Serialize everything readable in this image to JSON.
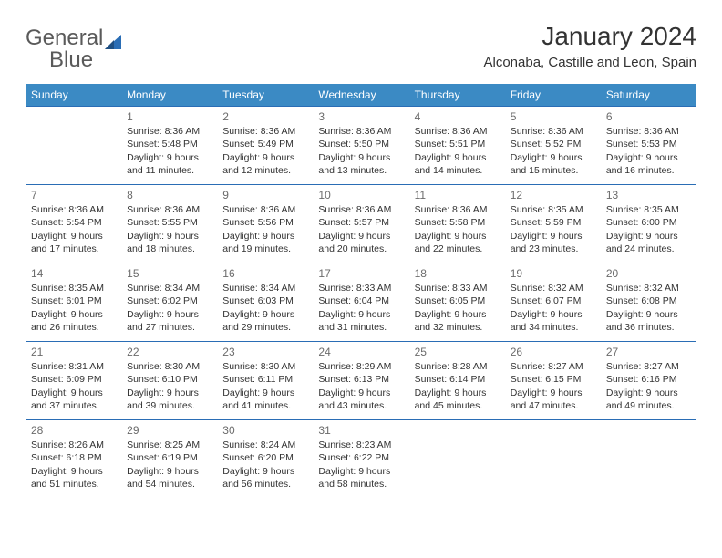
{
  "logo": {
    "word1": "General",
    "word2": "Blue"
  },
  "header": {
    "month_title": "January 2024",
    "location": "Alconaba, Castille and Leon, Spain"
  },
  "colors": {
    "header_bg": "#3b8ac4",
    "header_text": "#ffffff",
    "cell_border": "#2a6db5",
    "text": "#333333",
    "daynum": "#6b6b6b",
    "logo_gray": "#5a5a5a",
    "logo_blue": "#2a6db5"
  },
  "day_headers": [
    "Sunday",
    "Monday",
    "Tuesday",
    "Wednesday",
    "Thursday",
    "Friday",
    "Saturday"
  ],
  "weeks": [
    [
      null,
      {
        "n": "1",
        "sr": "Sunrise: 8:36 AM",
        "ss": "Sunset: 5:48 PM",
        "dl1": "Daylight: 9 hours",
        "dl2": "and 11 minutes."
      },
      {
        "n": "2",
        "sr": "Sunrise: 8:36 AM",
        "ss": "Sunset: 5:49 PM",
        "dl1": "Daylight: 9 hours",
        "dl2": "and 12 minutes."
      },
      {
        "n": "3",
        "sr": "Sunrise: 8:36 AM",
        "ss": "Sunset: 5:50 PM",
        "dl1": "Daylight: 9 hours",
        "dl2": "and 13 minutes."
      },
      {
        "n": "4",
        "sr": "Sunrise: 8:36 AM",
        "ss": "Sunset: 5:51 PM",
        "dl1": "Daylight: 9 hours",
        "dl2": "and 14 minutes."
      },
      {
        "n": "5",
        "sr": "Sunrise: 8:36 AM",
        "ss": "Sunset: 5:52 PM",
        "dl1": "Daylight: 9 hours",
        "dl2": "and 15 minutes."
      },
      {
        "n": "6",
        "sr": "Sunrise: 8:36 AM",
        "ss": "Sunset: 5:53 PM",
        "dl1": "Daylight: 9 hours",
        "dl2": "and 16 minutes."
      }
    ],
    [
      {
        "n": "7",
        "sr": "Sunrise: 8:36 AM",
        "ss": "Sunset: 5:54 PM",
        "dl1": "Daylight: 9 hours",
        "dl2": "and 17 minutes."
      },
      {
        "n": "8",
        "sr": "Sunrise: 8:36 AM",
        "ss": "Sunset: 5:55 PM",
        "dl1": "Daylight: 9 hours",
        "dl2": "and 18 minutes."
      },
      {
        "n": "9",
        "sr": "Sunrise: 8:36 AM",
        "ss": "Sunset: 5:56 PM",
        "dl1": "Daylight: 9 hours",
        "dl2": "and 19 minutes."
      },
      {
        "n": "10",
        "sr": "Sunrise: 8:36 AM",
        "ss": "Sunset: 5:57 PM",
        "dl1": "Daylight: 9 hours",
        "dl2": "and 20 minutes."
      },
      {
        "n": "11",
        "sr": "Sunrise: 8:36 AM",
        "ss": "Sunset: 5:58 PM",
        "dl1": "Daylight: 9 hours",
        "dl2": "and 22 minutes."
      },
      {
        "n": "12",
        "sr": "Sunrise: 8:35 AM",
        "ss": "Sunset: 5:59 PM",
        "dl1": "Daylight: 9 hours",
        "dl2": "and 23 minutes."
      },
      {
        "n": "13",
        "sr": "Sunrise: 8:35 AM",
        "ss": "Sunset: 6:00 PM",
        "dl1": "Daylight: 9 hours",
        "dl2": "and 24 minutes."
      }
    ],
    [
      {
        "n": "14",
        "sr": "Sunrise: 8:35 AM",
        "ss": "Sunset: 6:01 PM",
        "dl1": "Daylight: 9 hours",
        "dl2": "and 26 minutes."
      },
      {
        "n": "15",
        "sr": "Sunrise: 8:34 AM",
        "ss": "Sunset: 6:02 PM",
        "dl1": "Daylight: 9 hours",
        "dl2": "and 27 minutes."
      },
      {
        "n": "16",
        "sr": "Sunrise: 8:34 AM",
        "ss": "Sunset: 6:03 PM",
        "dl1": "Daylight: 9 hours",
        "dl2": "and 29 minutes."
      },
      {
        "n": "17",
        "sr": "Sunrise: 8:33 AM",
        "ss": "Sunset: 6:04 PM",
        "dl1": "Daylight: 9 hours",
        "dl2": "and 31 minutes."
      },
      {
        "n": "18",
        "sr": "Sunrise: 8:33 AM",
        "ss": "Sunset: 6:05 PM",
        "dl1": "Daylight: 9 hours",
        "dl2": "and 32 minutes."
      },
      {
        "n": "19",
        "sr": "Sunrise: 8:32 AM",
        "ss": "Sunset: 6:07 PM",
        "dl1": "Daylight: 9 hours",
        "dl2": "and 34 minutes."
      },
      {
        "n": "20",
        "sr": "Sunrise: 8:32 AM",
        "ss": "Sunset: 6:08 PM",
        "dl1": "Daylight: 9 hours",
        "dl2": "and 36 minutes."
      }
    ],
    [
      {
        "n": "21",
        "sr": "Sunrise: 8:31 AM",
        "ss": "Sunset: 6:09 PM",
        "dl1": "Daylight: 9 hours",
        "dl2": "and 37 minutes."
      },
      {
        "n": "22",
        "sr": "Sunrise: 8:30 AM",
        "ss": "Sunset: 6:10 PM",
        "dl1": "Daylight: 9 hours",
        "dl2": "and 39 minutes."
      },
      {
        "n": "23",
        "sr": "Sunrise: 8:30 AM",
        "ss": "Sunset: 6:11 PM",
        "dl1": "Daylight: 9 hours",
        "dl2": "and 41 minutes."
      },
      {
        "n": "24",
        "sr": "Sunrise: 8:29 AM",
        "ss": "Sunset: 6:13 PM",
        "dl1": "Daylight: 9 hours",
        "dl2": "and 43 minutes."
      },
      {
        "n": "25",
        "sr": "Sunrise: 8:28 AM",
        "ss": "Sunset: 6:14 PM",
        "dl1": "Daylight: 9 hours",
        "dl2": "and 45 minutes."
      },
      {
        "n": "26",
        "sr": "Sunrise: 8:27 AM",
        "ss": "Sunset: 6:15 PM",
        "dl1": "Daylight: 9 hours",
        "dl2": "and 47 minutes."
      },
      {
        "n": "27",
        "sr": "Sunrise: 8:27 AM",
        "ss": "Sunset: 6:16 PM",
        "dl1": "Daylight: 9 hours",
        "dl2": "and 49 minutes."
      }
    ],
    [
      {
        "n": "28",
        "sr": "Sunrise: 8:26 AM",
        "ss": "Sunset: 6:18 PM",
        "dl1": "Daylight: 9 hours",
        "dl2": "and 51 minutes."
      },
      {
        "n": "29",
        "sr": "Sunrise: 8:25 AM",
        "ss": "Sunset: 6:19 PM",
        "dl1": "Daylight: 9 hours",
        "dl2": "and 54 minutes."
      },
      {
        "n": "30",
        "sr": "Sunrise: 8:24 AM",
        "ss": "Sunset: 6:20 PM",
        "dl1": "Daylight: 9 hours",
        "dl2": "and 56 minutes."
      },
      {
        "n": "31",
        "sr": "Sunrise: 8:23 AM",
        "ss": "Sunset: 6:22 PM",
        "dl1": "Daylight: 9 hours",
        "dl2": "and 58 minutes."
      },
      null,
      null,
      null
    ]
  ]
}
